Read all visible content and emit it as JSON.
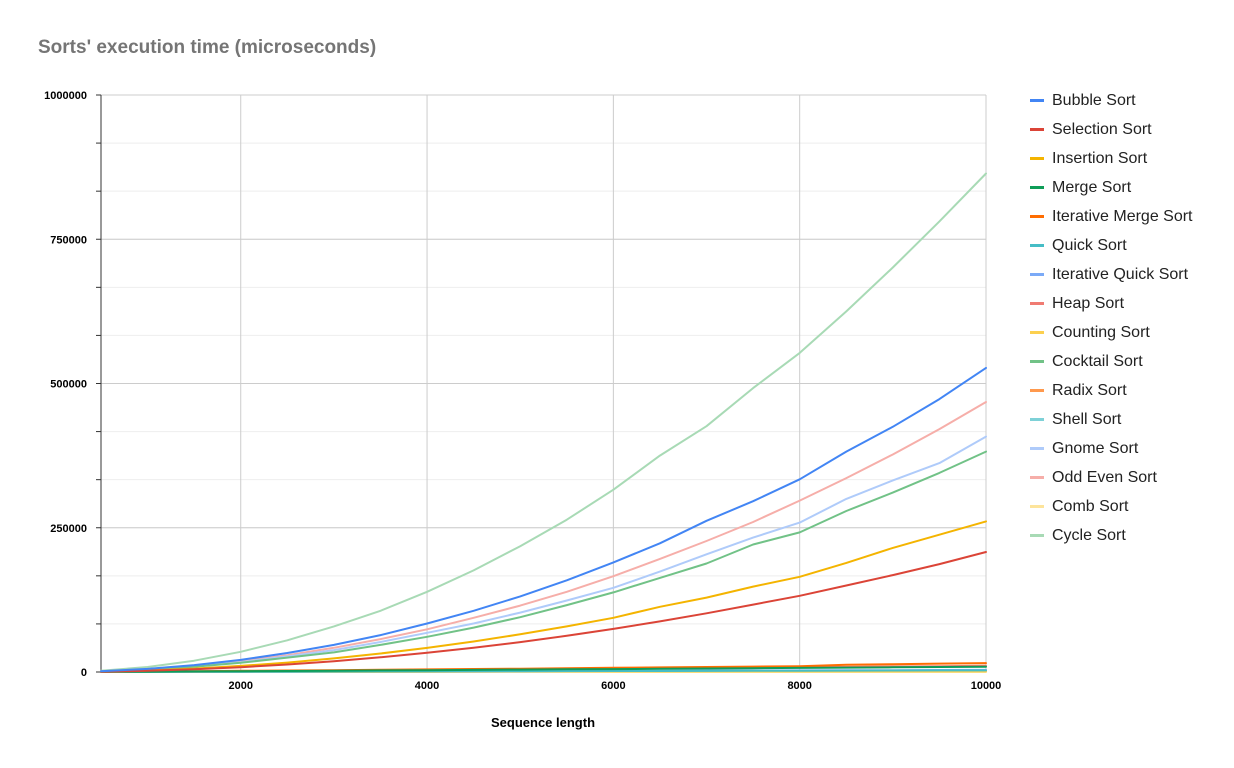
{
  "chart_data": {
    "type": "line",
    "title": "Sorts' execution time (microseconds)",
    "xlabel": "Sequence length",
    "ylabel": "",
    "xlim": [
      500,
      10000
    ],
    "ylim": [
      0,
      1000000
    ],
    "xticks": [
      2000,
      4000,
      6000,
      8000,
      10000
    ],
    "yticks": [
      0,
      250000,
      500000,
      750000,
      1000000
    ],
    "x": [
      500,
      1000,
      1500,
      2000,
      2500,
      3000,
      3500,
      4000,
      4500,
      5000,
      5500,
      6000,
      6500,
      7000,
      7500,
      8000,
      8500,
      9000,
      9500,
      10000
    ],
    "grid": true,
    "legend_position": "right",
    "series": [
      {
        "name": "Bubble Sort",
        "color": "#4285f4",
        "values": [
          1300,
          5300,
          12000,
          21000,
          33000,
          47000,
          64000,
          84000,
          106000,
          131000,
          159000,
          190000,
          223000,
          262000,
          296000,
          334000,
          382000,
          425000,
          473000,
          527000
        ]
      },
      {
        "name": "Selection Sort",
        "color": "#db4437",
        "values": [
          500,
          2000,
          4700,
          8300,
          13000,
          18700,
          25400,
          33200,
          42000,
          51900,
          62800,
          74700,
          87700,
          101700,
          116800,
          132000,
          150000,
          168000,
          187000,
          208000
        ]
      },
      {
        "name": "Insertion Sort",
        "color": "#f4b400",
        "values": [
          650,
          2600,
          5900,
          10500,
          16300,
          23500,
          32000,
          41800,
          52900,
          65300,
          79000,
          94000,
          113000,
          129000,
          148000,
          165000,
          189000,
          215000,
          238000,
          261000
        ]
      },
      {
        "name": "Merge Sort",
        "color": "#0f9d58",
        "values": [
          300,
          600,
          1000,
          1400,
          1800,
          2200,
          2700,
          3100,
          3600,
          4100,
          4600,
          5100,
          5600,
          6100,
          6600,
          7100,
          7700,
          8200,
          8700,
          9200
        ]
      },
      {
        "name": "Iterative Merge Sort",
        "color": "#ff6d01",
        "values": [
          400,
          900,
          1400,
          2000,
          2600,
          3200,
          3800,
          4500,
          5200,
          5800,
          6500,
          7200,
          7900,
          8600,
          9400,
          10100,
          12500,
          13500,
          14500,
          15500
        ]
      },
      {
        "name": "Quick Sort",
        "color": "#46bdc6",
        "values": [
          100,
          200,
          300,
          450,
          600,
          750,
          900,
          1050,
          1200,
          1350,
          1500,
          1650,
          1800,
          1950,
          2100,
          2250,
          2400,
          2550,
          2700,
          2850
        ]
      },
      {
        "name": "Iterative Quick Sort",
        "color": "#7baaf7",
        "values": [
          150,
          300,
          450,
          600,
          750,
          900,
          1050,
          1200,
          1400,
          1600,
          1800,
          2000,
          2200,
          2400,
          2600,
          2800,
          3000,
          3200,
          3400,
          3600
        ]
      },
      {
        "name": "Heap Sort",
        "color": "#f07b72",
        "values": [
          300,
          700,
          1100,
          1600,
          2100,
          2600,
          3100,
          3600,
          4200,
          4700,
          5300,
          5900,
          6500,
          7100,
          7700,
          8300,
          8900,
          9500,
          10100,
          10700
        ]
      },
      {
        "name": "Counting Sort",
        "color": "#fcd04f",
        "values": [
          30,
          60,
          90,
          120,
          150,
          180,
          210,
          240,
          270,
          300,
          330,
          360,
          390,
          420,
          450,
          480,
          510,
          540,
          570,
          600
        ]
      },
      {
        "name": "Cocktail Sort",
        "color": "#71c287",
        "values": [
          1000,
          4000,
          9000,
          16000,
          25000,
          34000,
          47000,
          61000,
          77000,
          95000,
          116000,
          138000,
          163000,
          188000,
          221000,
          242000,
          279000,
          311000,
          345000,
          382000
        ]
      },
      {
        "name": "Radix Sort",
        "color": "#ff994d",
        "values": [
          80,
          160,
          240,
          320,
          400,
          480,
          560,
          640,
          720,
          800,
          880,
          960,
          1040,
          1120,
          1200,
          1280,
          1360,
          1440,
          1520,
          1600
        ]
      },
      {
        "name": "Shell Sort",
        "color": "#7ed1d7",
        "values": [
          100,
          200,
          350,
          500,
          650,
          800,
          950,
          1100,
          1250,
          1400,
          1550,
          1700,
          1850,
          2000,
          2150,
          2300,
          2450,
          2600,
          2750,
          2900
        ]
      },
      {
        "name": "Gnome Sort",
        "color": "#afcbfa",
        "values": [
          1100,
          4300,
          9800,
          17000,
          27000,
          38000,
          52000,
          68000,
          84000,
          103000,
          124000,
          146000,
          174000,
          204000,
          233000,
          259000,
          300000,
          332000,
          362000,
          408000
        ]
      },
      {
        "name": "Odd Even Sort",
        "color": "#f6aea9",
        "values": [
          1200,
          4700,
          10500,
          18700,
          29200,
          42000,
          57000,
          74000,
          94000,
          115000,
          139000,
          166000,
          196000,
          227000,
          260000,
          297000,
          336000,
          377000,
          421000,
          468000
        ]
      },
      {
        "name": "Comb Sort",
        "color": "#fde49b",
        "values": [
          60,
          140,
          220,
          300,
          380,
          460,
          540,
          620,
          700,
          780,
          860,
          940,
          1020,
          1100,
          1180,
          1260,
          1340,
          1420,
          1500,
          1580
        ]
      },
      {
        "name": "Cycle Sort",
        "color": "#a8dab5",
        "values": [
          2100,
          8700,
          19500,
          35000,
          55000,
          79000,
          106000,
          139000,
          176000,
          218000,
          264000,
          316000,
          375000,
          426000,
          492000,
          553000,
          625000,
          701000,
          781000,
          864000
        ]
      }
    ]
  }
}
